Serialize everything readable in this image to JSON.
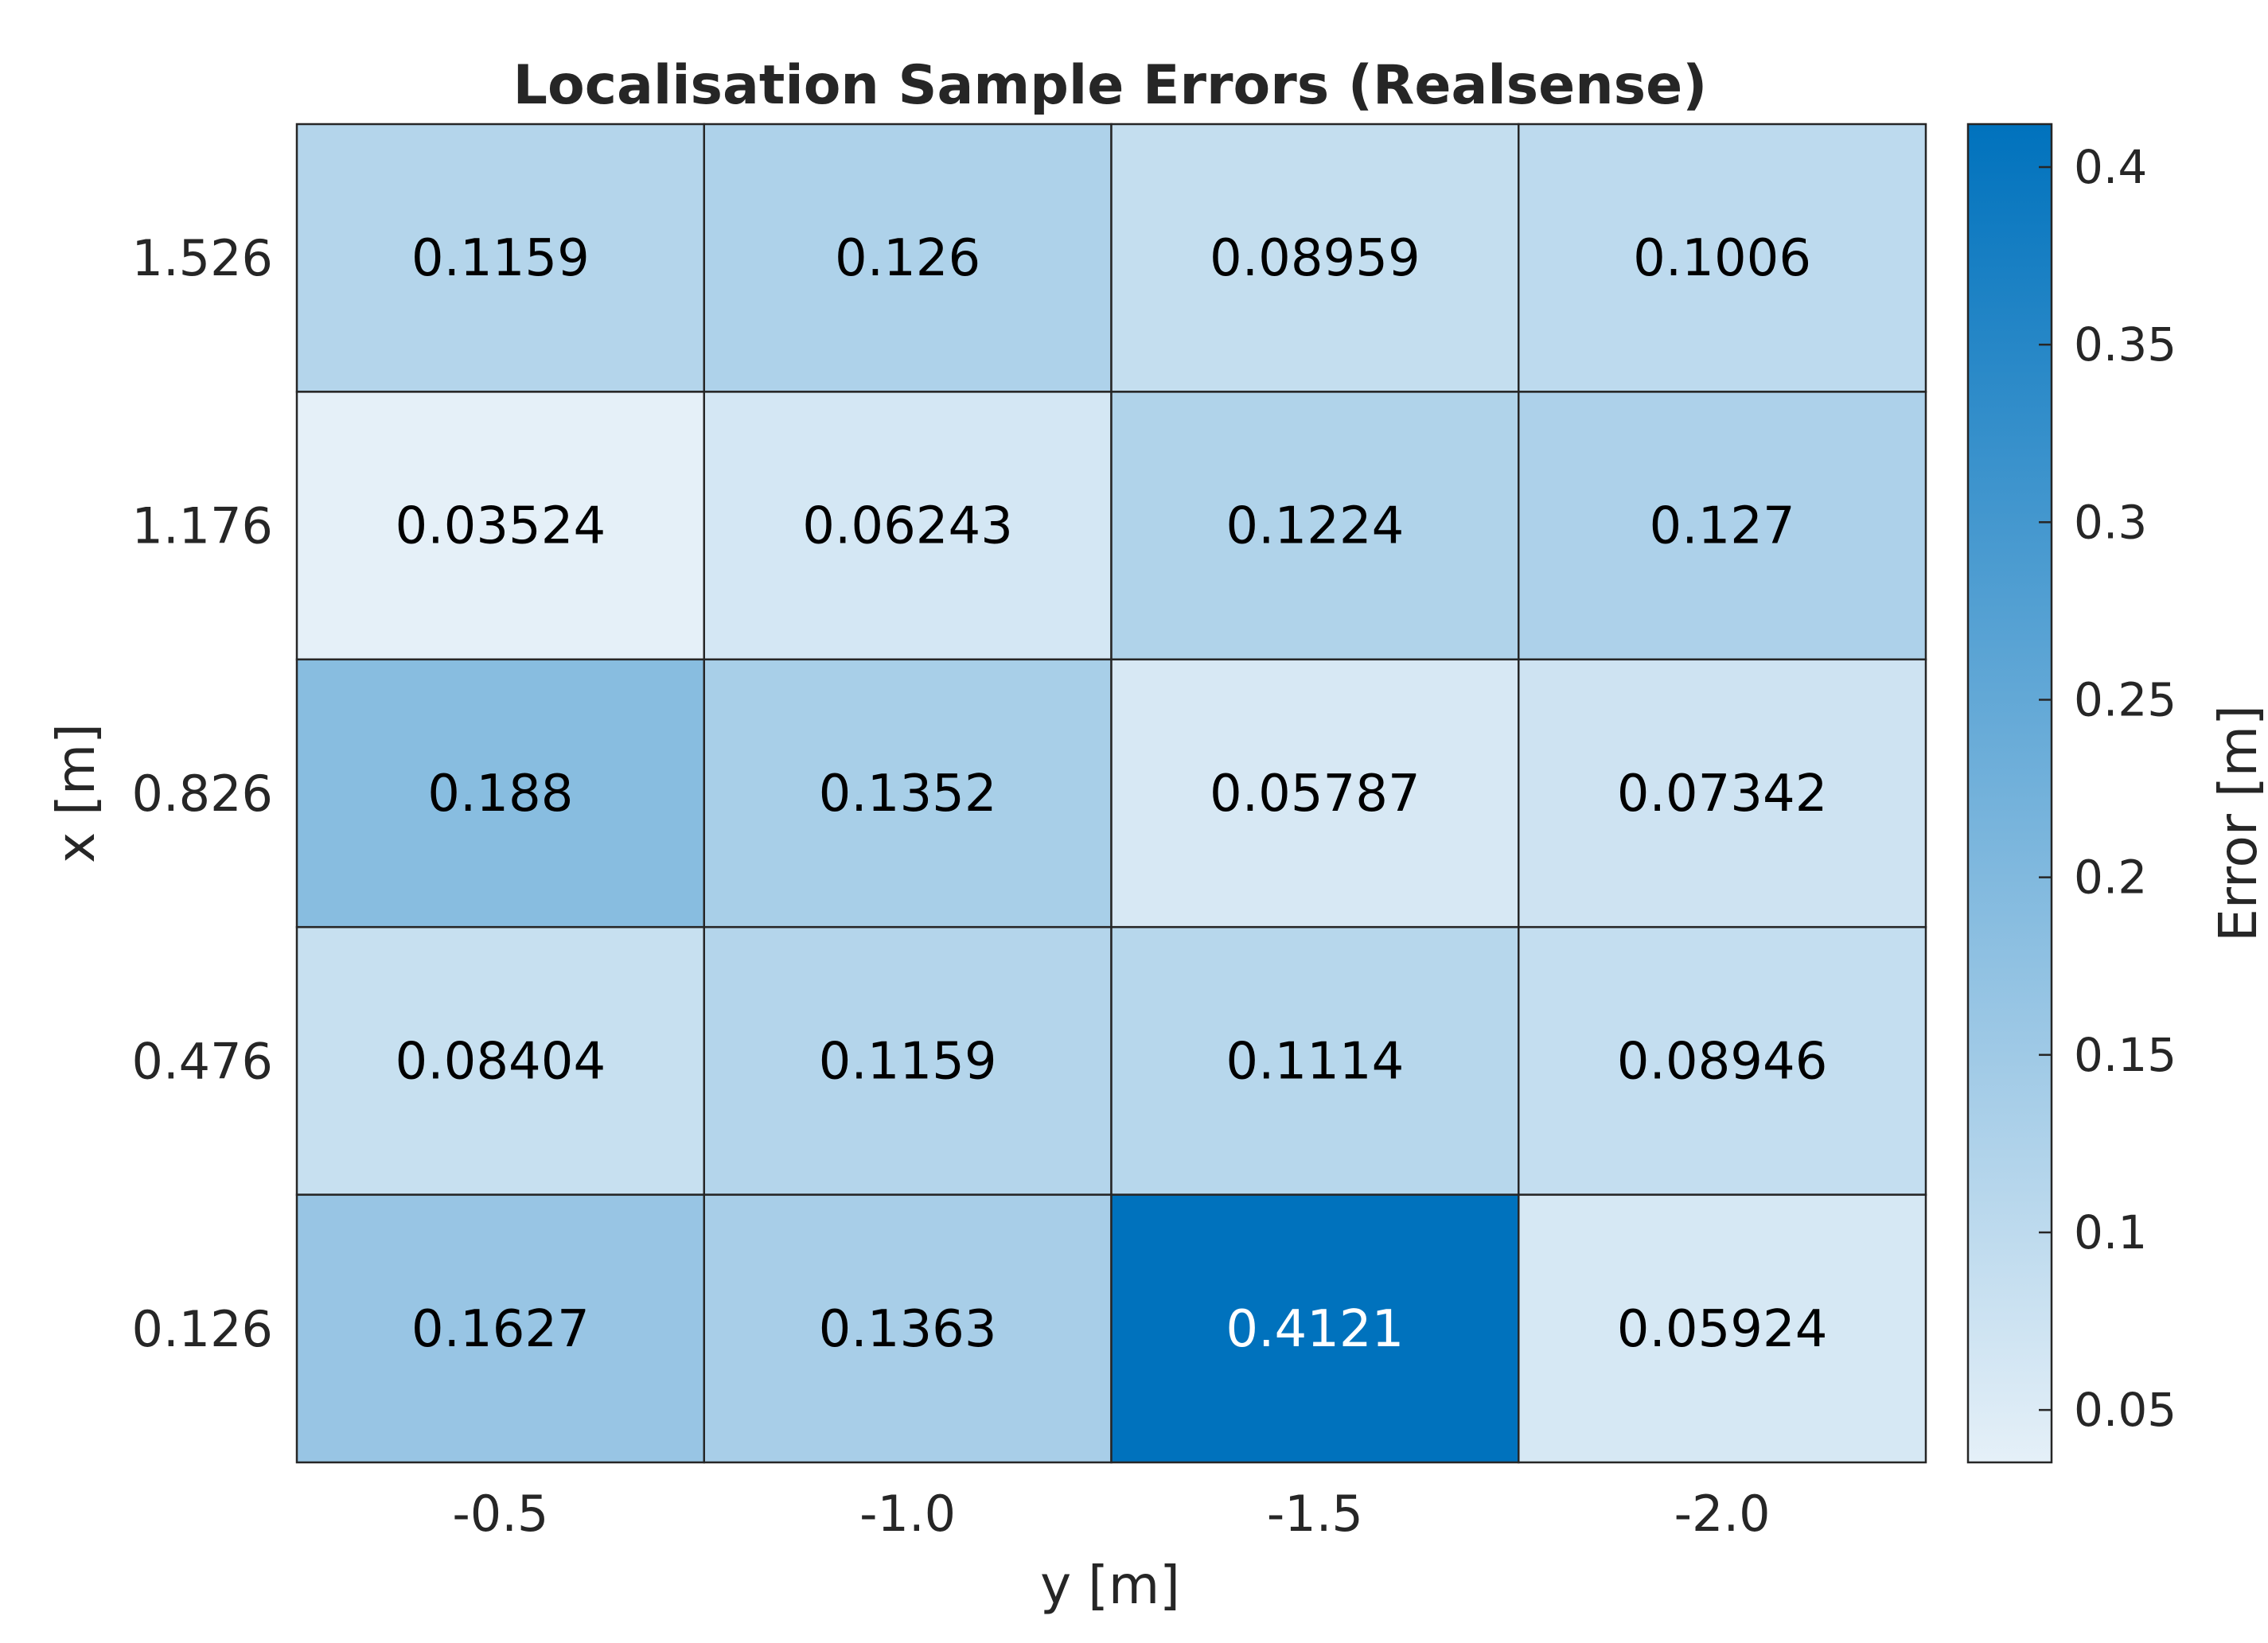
{
  "chart_data": {
    "type": "heatmap",
    "title": "Localisation Sample Errors (Realsense)",
    "xlabel": "y [m]",
    "ylabel": "x [m]",
    "x_categories": [
      "-0.5",
      "-1.0",
      "-1.5",
      "-2.0"
    ],
    "y_categories": [
      "1.526",
      "1.176",
      "0.826",
      "0.476",
      "0.126"
    ],
    "values": [
      [
        0.1159,
        0.126,
        0.08959,
        0.1006
      ],
      [
        0.03524,
        0.06243,
        0.1224,
        0.127
      ],
      [
        0.188,
        0.1352,
        0.05787,
        0.07342
      ],
      [
        0.08404,
        0.1159,
        0.1114,
        0.08946
      ],
      [
        0.1627,
        0.1363,
        0.4121,
        0.05924
      ]
    ],
    "value_labels": [
      [
        "0.1159",
        "0.126",
        "0.08959",
        "0.1006"
      ],
      [
        "0.03524",
        "0.06243",
        "0.1224",
        "0.127"
      ],
      [
        "0.188",
        "0.1352",
        "0.05787",
        "0.07342"
      ],
      [
        "0.08404",
        "0.1159",
        "0.1114",
        "0.08946"
      ],
      [
        "0.1627",
        "0.1363",
        "0.4121",
        "0.05924"
      ]
    ],
    "colorbar": {
      "label": "Error [m]",
      "range": [
        0.03524,
        0.4121
      ],
      "ticks": [
        0.05,
        0.1,
        0.15,
        0.2,
        0.25,
        0.3,
        0.35,
        0.4
      ],
      "tick_labels": [
        "0.05",
        "0.1",
        "0.15",
        "0.2",
        "0.25",
        "0.3",
        "0.35",
        "0.4"
      ],
      "color_low": "#e5f0f8",
      "color_high": "#0072bd"
    },
    "grid": true,
    "legend": "none"
  },
  "colors": {
    "cell_border": "#262626",
    "text_dark": "#000000",
    "text_light": "#ffffff",
    "axis_text": "#262626"
  }
}
